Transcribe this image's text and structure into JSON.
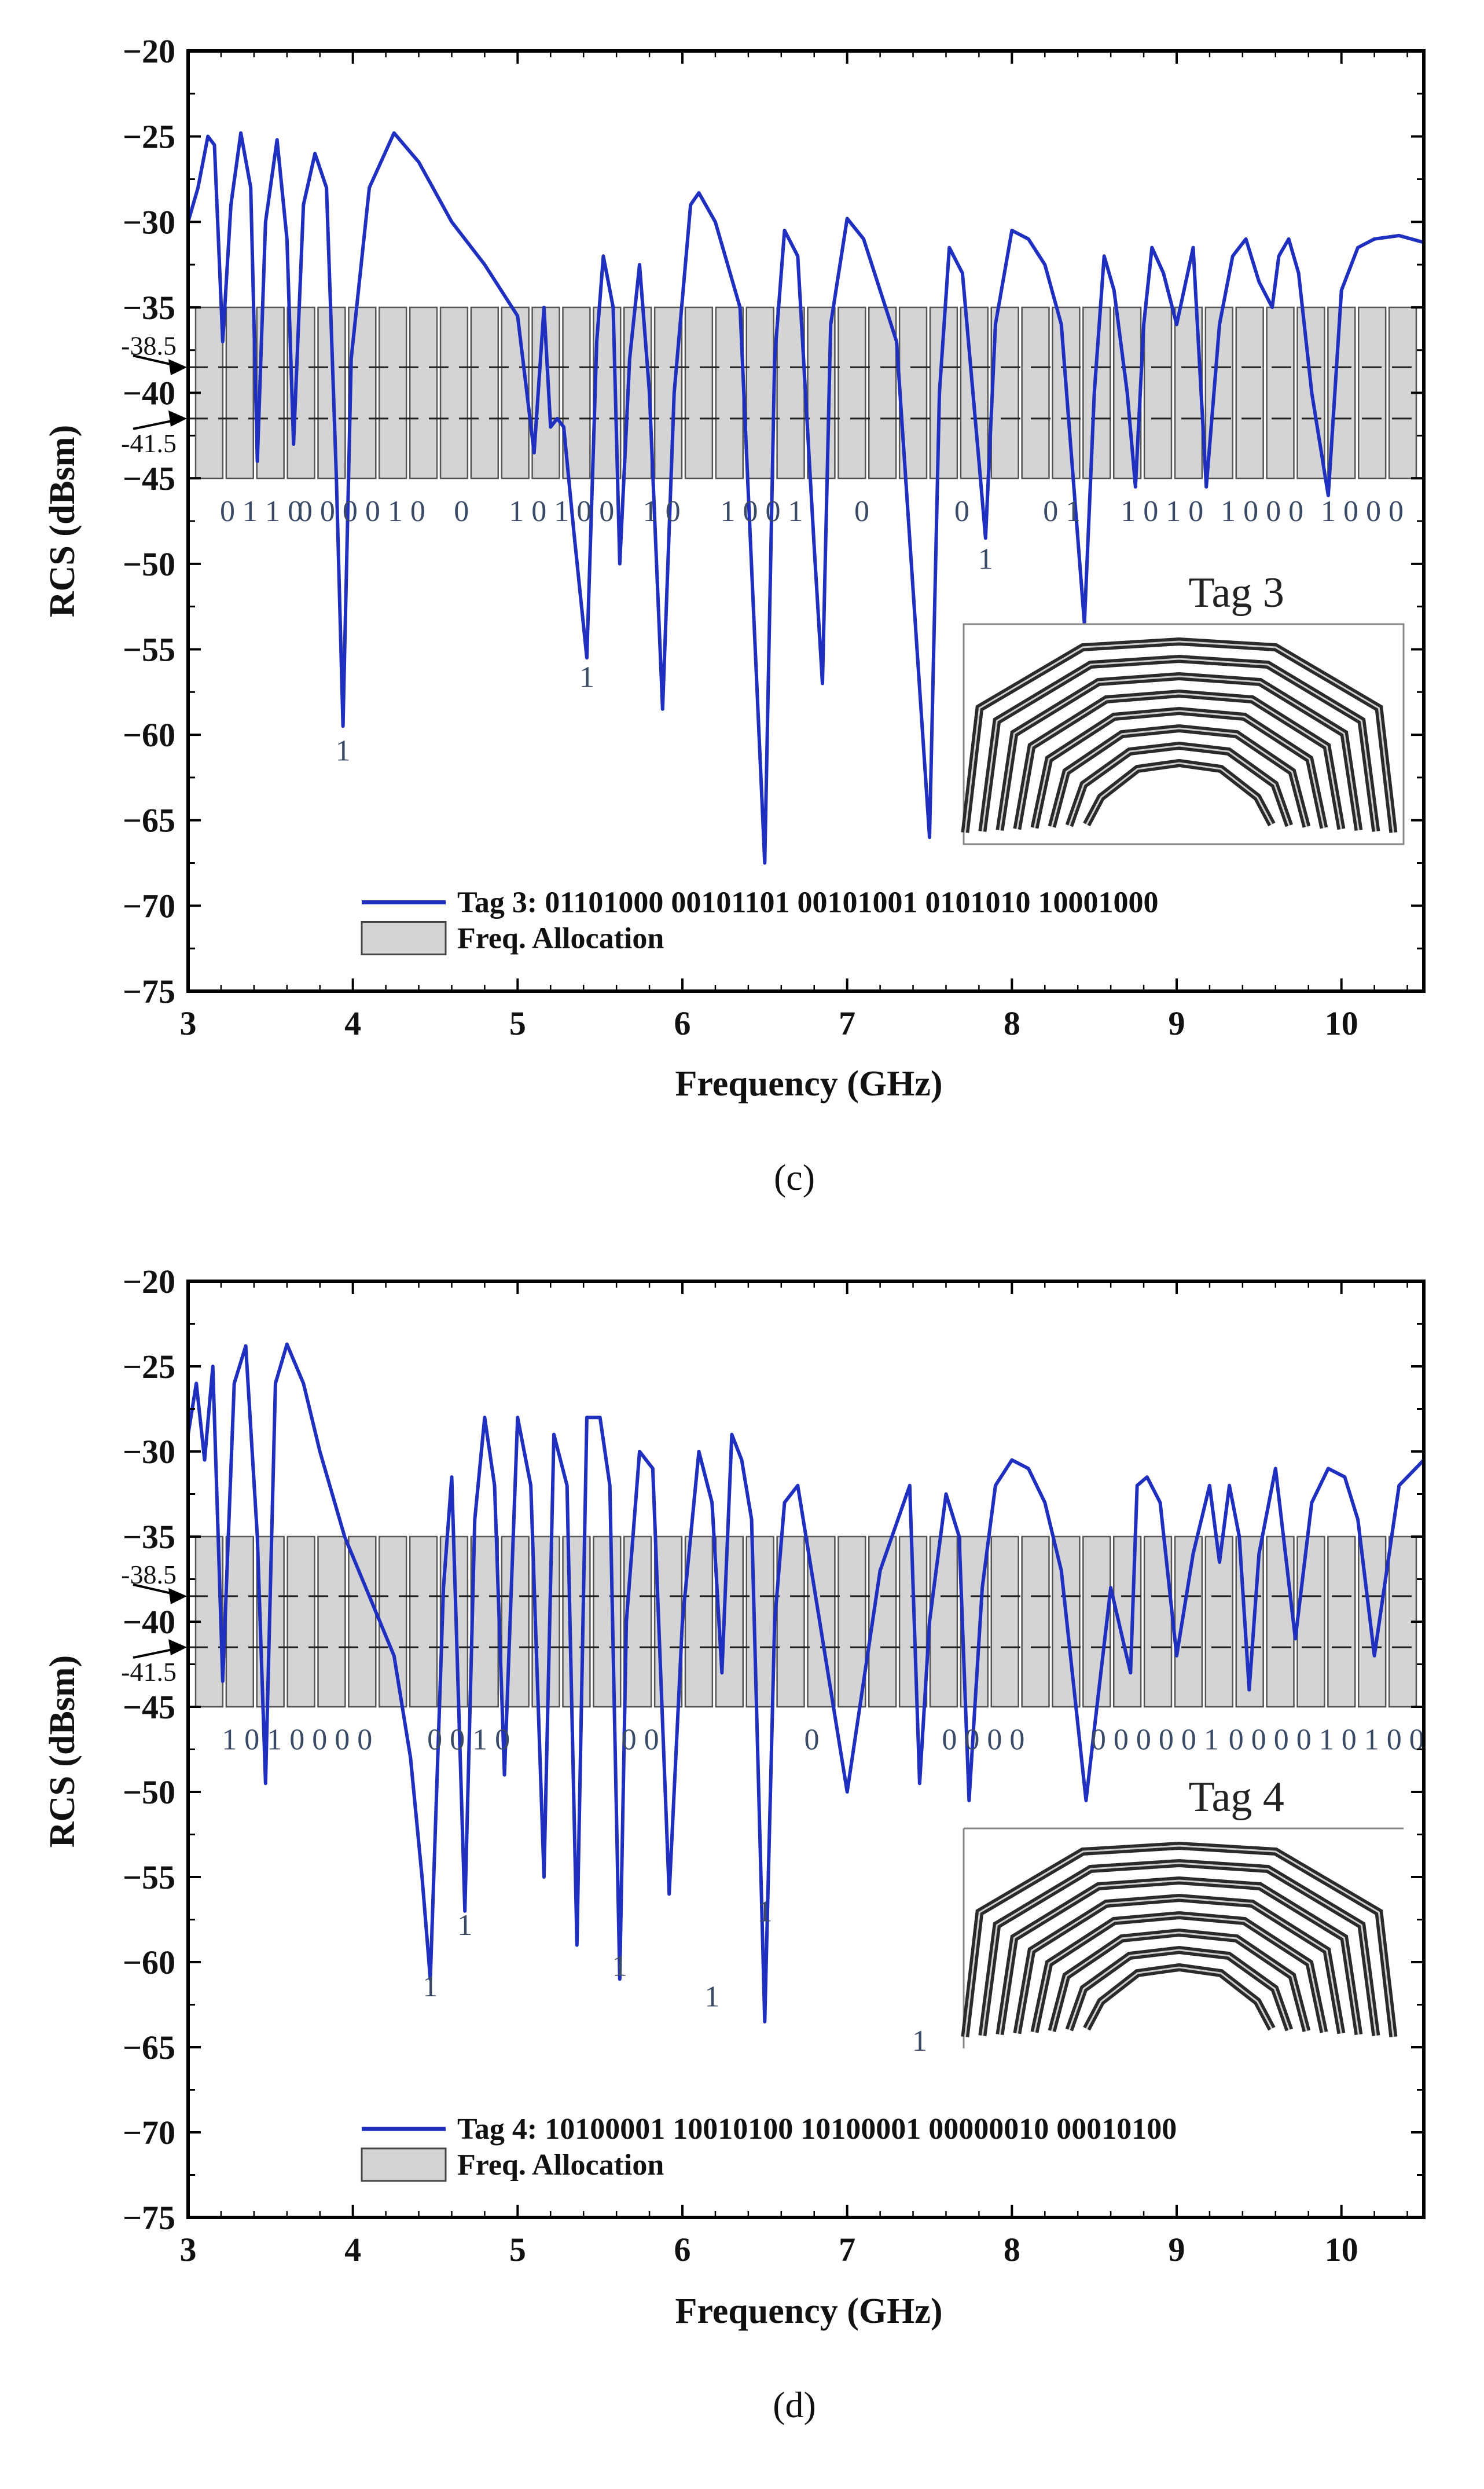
{
  "chart_data": [
    {
      "type": "line",
      "panel_label": "(c)",
      "xlabel": "Frequency (GHz)",
      "ylabel": "RCS (dBsm)",
      "xlim": [
        3,
        10.5
      ],
      "ylim": [
        -75,
        -20
      ],
      "xticks": [
        "3",
        "4",
        "5",
        "6",
        "7",
        "8",
        "9",
        "10"
      ],
      "yticks": [
        "−20",
        "−25",
        "−30",
        "−35",
        "−40",
        "−45",
        "−50",
        "−55",
        "−60",
        "−65",
        "−70",
        "−75"
      ],
      "band": {
        "low": -45,
        "high": -35
      },
      "slot_count": 40,
      "thresholds": [
        {
          "value": -38.5,
          "label": "-38.5"
        },
        {
          "value": -41.5,
          "label": "-41.5"
        }
      ],
      "bits_row": [
        "0 1 1 0",
        "0 0 0 0 1 0",
        "0",
        "1 0 1 0 0",
        "1 0",
        "1 0 0 1",
        "0",
        "0",
        "0 1",
        "1 0 1 0",
        "1 0 0 0",
        "1 0 0 0"
      ],
      "one_labels": [
        {
          "x": 3.94,
          "y": -61.5,
          "text": "1"
        },
        {
          "x": 5.42,
          "y": -57.2,
          "text": "1"
        },
        {
          "x": 7.84,
          "y": -50.3,
          "text": "1"
        }
      ],
      "inset_title": "Tag 3",
      "series": [
        {
          "name": "Tag 3: 01101000 00101101 00101001 0101010 10001000",
          "color": "#1f2fbf",
          "x": [
            3.0,
            3.06,
            3.12,
            3.16,
            3.21,
            3.26,
            3.32,
            3.38,
            3.42,
            3.47,
            3.54,
            3.6,
            3.64,
            3.7,
            3.77,
            3.84,
            3.9,
            3.94,
            3.99,
            4.1,
            4.25,
            4.4,
            4.6,
            4.8,
            5.0,
            5.1,
            5.16,
            5.2,
            5.24,
            5.28,
            5.34,
            5.42,
            5.48,
            5.52,
            5.58,
            5.62,
            5.68,
            5.74,
            5.8,
            5.88,
            5.95,
            6.05,
            6.1,
            6.2,
            6.35,
            6.5,
            6.56,
            6.62,
            6.7,
            6.8,
            6.85,
            6.9,
            7.0,
            7.1,
            7.3,
            7.5,
            7.56,
            7.62,
            7.7,
            7.8,
            7.84,
            7.9,
            8.0,
            8.1,
            8.2,
            8.3,
            8.44,
            8.5,
            8.56,
            8.62,
            8.7,
            8.75,
            8.8,
            8.85,
            8.92,
            9.0,
            9.1,
            9.18,
            9.26,
            9.34,
            9.42,
            9.5,
            9.58,
            9.62,
            9.68,
            9.74,
            9.82,
            9.92,
            10.0,
            10.1,
            10.2,
            10.35,
            10.5
          ],
          "y": [
            -30.0,
            -28.0,
            -25.0,
            -25.5,
            -37.0,
            -29.0,
            -24.8,
            -28.0,
            -44.0,
            -30.0,
            -25.2,
            -31.0,
            -43.0,
            -29.0,
            -26.0,
            -28.0,
            -45.0,
            -59.5,
            -38.0,
            -28.0,
            -24.8,
            -26.5,
            -30.0,
            -32.5,
            -35.5,
            -43.5,
            -35.0,
            -42.0,
            -41.5,
            -42.0,
            -48.0,
            -55.5,
            -37.0,
            -32.0,
            -35.0,
            -50.0,
            -38.0,
            -32.5,
            -40.0,
            -58.5,
            -40.0,
            -29.0,
            -28.3,
            -30.0,
            -35.0,
            -67.5,
            -38.0,
            -30.5,
            -32.0,
            -49.0,
            -57.0,
            -36.0,
            -29.8,
            -31.0,
            -37.0,
            -66.0,
            -40.0,
            -31.5,
            -33.0,
            -44.0,
            -48.5,
            -36.0,
            -30.5,
            -31.0,
            -32.5,
            -36.0,
            -53.5,
            -40.0,
            -32.0,
            -34.0,
            -40.0,
            -45.5,
            -36.0,
            -31.5,
            -33.0,
            -36.0,
            -31.5,
            -45.5,
            -36.0,
            -32.0,
            -31.0,
            -33.5,
            -35.0,
            -32.0,
            -31.0,
            -33.0,
            -40.0,
            -46.0,
            -34.0,
            -31.5,
            -31.0,
            -30.8,
            -31.2
          ]
        }
      ],
      "legend": [
        {
          "type": "line",
          "label": "Tag 3: 01101000 00101101 00101001 0101010 10001000"
        },
        {
          "type": "patch",
          "label": "Freq. Allocation"
        }
      ]
    },
    {
      "type": "line",
      "panel_label": "(d)",
      "xlabel": "Frequency (GHz)",
      "ylabel": "RCS (dBsm)",
      "xlim": [
        3,
        10.5
      ],
      "ylim": [
        -75,
        -20
      ],
      "xticks": [
        "3",
        "4",
        "5",
        "6",
        "7",
        "8",
        "9",
        "10"
      ],
      "yticks": [
        "−20",
        "−25",
        "−30",
        "−35",
        "−40",
        "−45",
        "−50",
        "−55",
        "−60",
        "−65",
        "−70",
        "−75"
      ],
      "band": {
        "low": -45,
        "high": -35
      },
      "slot_count": 40,
      "thresholds": [
        {
          "value": -38.5,
          "label": "-38.5"
        },
        {
          "value": -41.5,
          "label": "-41.5"
        }
      ],
      "bits_row": [
        "1 0 1 0 0 0 0",
        "0 0 1 0",
        "0 0",
        "0",
        "0 0 0 0",
        "0 0 0 0 0 1",
        "0 0 0 0 1 0 1 0 0"
      ],
      "one_labels": [
        {
          "x": 4.47,
          "y": -62.0,
          "text": "1"
        },
        {
          "x": 4.68,
          "y": -58.4,
          "text": "1"
        },
        {
          "x": 5.62,
          "y": -60.8,
          "text": "1"
        },
        {
          "x": 6.18,
          "y": -62.6,
          "text": "1"
        },
        {
          "x": 6.5,
          "y": -57.6,
          "text": "1"
        },
        {
          "x": 7.44,
          "y": -65.2,
          "text": "1"
        }
      ],
      "inset_title": "Tag 4",
      "series": [
        {
          "name": "Tag 4: 10100001 10010100 10100001 00000010 00010100",
          "color": "#1f2fbf",
          "x": [
            3.0,
            3.05,
            3.1,
            3.15,
            3.21,
            3.28,
            3.35,
            3.42,
            3.47,
            3.53,
            3.6,
            3.7,
            3.8,
            3.95,
            4.1,
            4.25,
            4.35,
            4.42,
            4.47,
            4.55,
            4.6,
            4.68,
            4.74,
            4.8,
            4.86,
            4.92,
            5.0,
            5.08,
            5.16,
            5.22,
            5.3,
            5.36,
            5.42,
            5.5,
            5.56,
            5.62,
            5.66,
            5.74,
            5.82,
            5.92,
            6.0,
            6.1,
            6.18,
            6.24,
            6.3,
            6.36,
            6.42,
            6.5,
            6.56,
            6.62,
            6.7,
            6.85,
            7.0,
            7.2,
            7.38,
            7.44,
            7.5,
            7.6,
            7.68,
            7.74,
            7.82,
            7.9,
            8.0,
            8.1,
            8.2,
            8.3,
            8.45,
            8.6,
            8.72,
            8.76,
            8.82,
            8.9,
            9.0,
            9.1,
            9.2,
            9.26,
            9.32,
            9.38,
            9.44,
            9.5,
            9.6,
            9.66,
            9.72,
            9.82,
            9.92,
            10.02,
            10.1,
            10.2,
            10.35,
            10.5
          ],
          "y": [
            -29.0,
            -26.0,
            -30.5,
            -25.0,
            -43.5,
            -26.0,
            -23.8,
            -35.0,
            -49.5,
            -26.0,
            -23.7,
            -26.0,
            -30.0,
            -35.0,
            -38.5,
            -42.0,
            -48.0,
            -55.0,
            -61.0,
            -38.0,
            -31.5,
            -57.0,
            -34.0,
            -28.0,
            -32.0,
            -49.0,
            -28.0,
            -32.0,
            -55.0,
            -29.0,
            -32.0,
            -59.0,
            -28.0,
            -28.0,
            -32.0,
            -61.0,
            -40.0,
            -30.0,
            -31.0,
            -56.0,
            -40.0,
            -30.0,
            -33.0,
            -43.0,
            -29.0,
            -30.5,
            -34.0,
            -63.5,
            -40.0,
            -33.0,
            -32.0,
            -41.0,
            -50.0,
            -37.0,
            -32.0,
            -49.5,
            -40.0,
            -32.5,
            -35.0,
            -50.5,
            -38.0,
            -32.0,
            -30.5,
            -31.0,
            -33.0,
            -37.0,
            -50.5,
            -38.0,
            -43.0,
            -32.0,
            -31.5,
            -33.0,
            -42.0,
            -36.0,
            -32.0,
            -36.5,
            -32.0,
            -35.0,
            -44.0,
            -36.0,
            -31.0,
            -36.0,
            -41.0,
            -33.0,
            -31.0,
            -31.5,
            -34.0,
            -42.0,
            -32.0,
            -30.5
          ],
          "y_fix": null
        }
      ],
      "legend": [
        {
          "type": "line",
          "label": "Tag 4: 10100001 10010100 10100001 00000010 00010100"
        },
        {
          "type": "patch",
          "label": "Freq. Allocation"
        }
      ]
    }
  ]
}
